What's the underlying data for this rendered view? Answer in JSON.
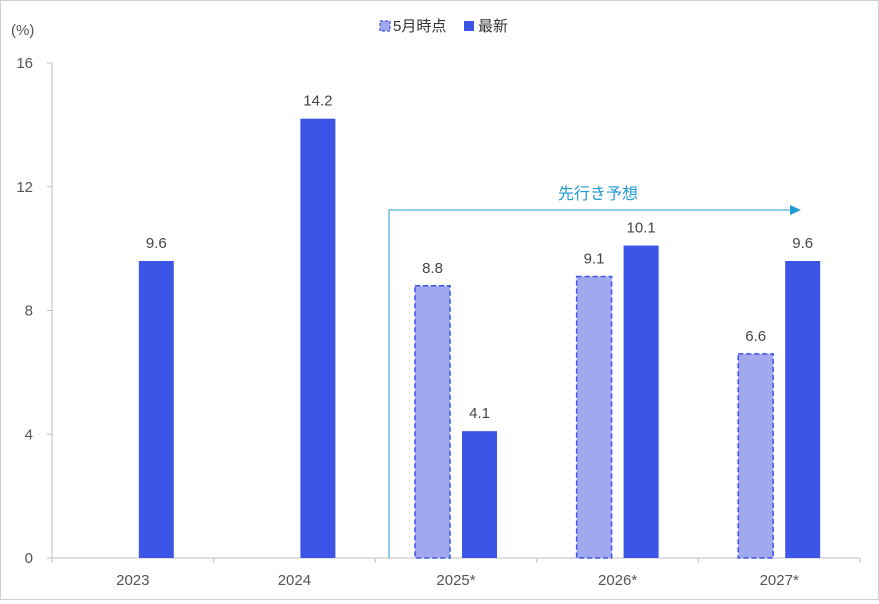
{
  "chart_data": {
    "type": "bar",
    "unit_label": "(%)",
    "categories": [
      "2023",
      "2024",
      "2025*",
      "2026*",
      "2027*"
    ],
    "series": [
      {
        "name": "5月時点",
        "values": [
          null,
          null,
          8.8,
          9.1,
          6.6
        ],
        "color": "#a0a8f0",
        "stroke": "#3d52e5"
      },
      {
        "name": "最新",
        "values": [
          9.6,
          14.2,
          4.1,
          10.1,
          9.6
        ],
        "color": "#3d55e6"
      }
    ],
    "ylim": [
      0,
      16
    ],
    "yticks": [
      0,
      4,
      8,
      12,
      16
    ],
    "legend_position": "top-center",
    "annotation": {
      "text": "先行き予想",
      "color": "#1f9bd6"
    },
    "grid": false
  }
}
